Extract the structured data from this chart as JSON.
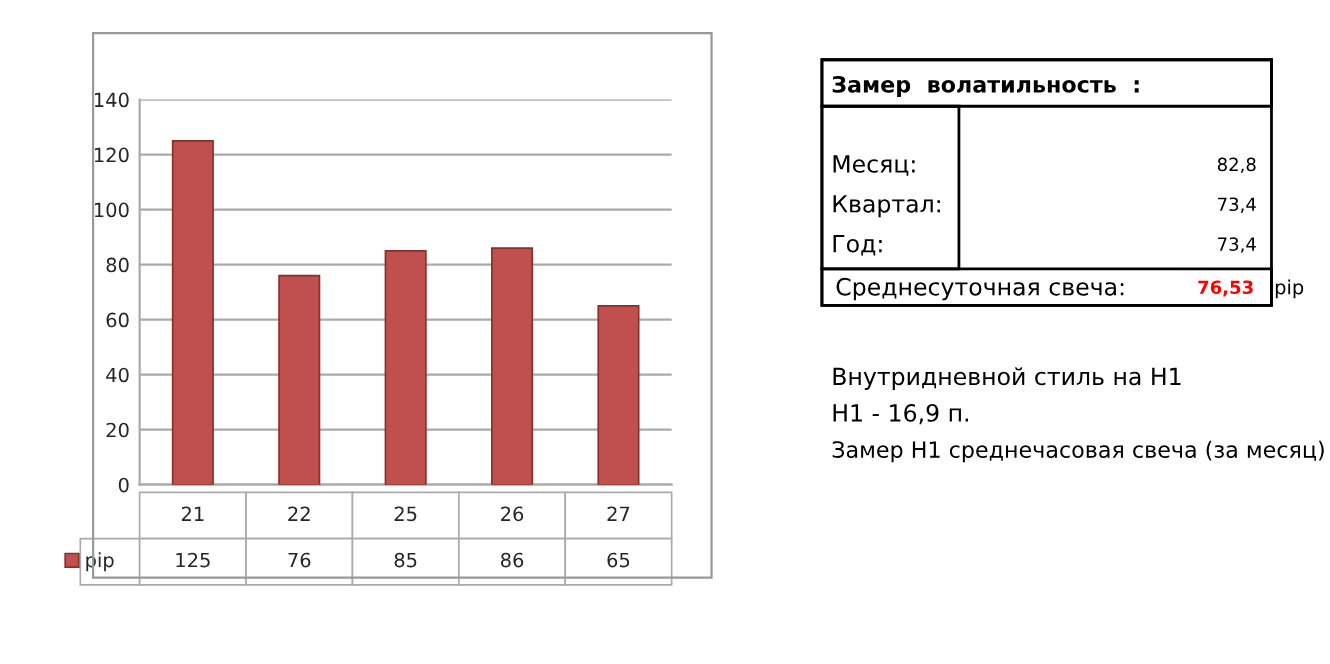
{
  "chart_data": {
    "type": "bar",
    "categories": [
      "21",
      "22",
      "25",
      "26",
      "27"
    ],
    "series": [
      {
        "name": "pip",
        "color": "#c0504d",
        "values": [
          125,
          76,
          85,
          86,
          65
        ]
      }
    ],
    "ylim": [
      0,
      140
    ],
    "yticks": [
      0,
      20,
      40,
      60,
      80,
      100,
      120,
      140
    ],
    "grid": "y",
    "data_labels": true,
    "legend": "bottom",
    "annotations": [
      "Замер  волатильность  :",
      "Месяц:",
      "82,8",
      "Квартал:",
      "73,4",
      "Год:",
      "73,4",
      "Среднесуточная свеча:",
      "76,53",
      "pip",
      "Внутридневной стиль на H1",
      "H1 - 16,9 п.",
      "Замер H1 среднечасовая свеча (за месяц)"
    ]
  }
}
